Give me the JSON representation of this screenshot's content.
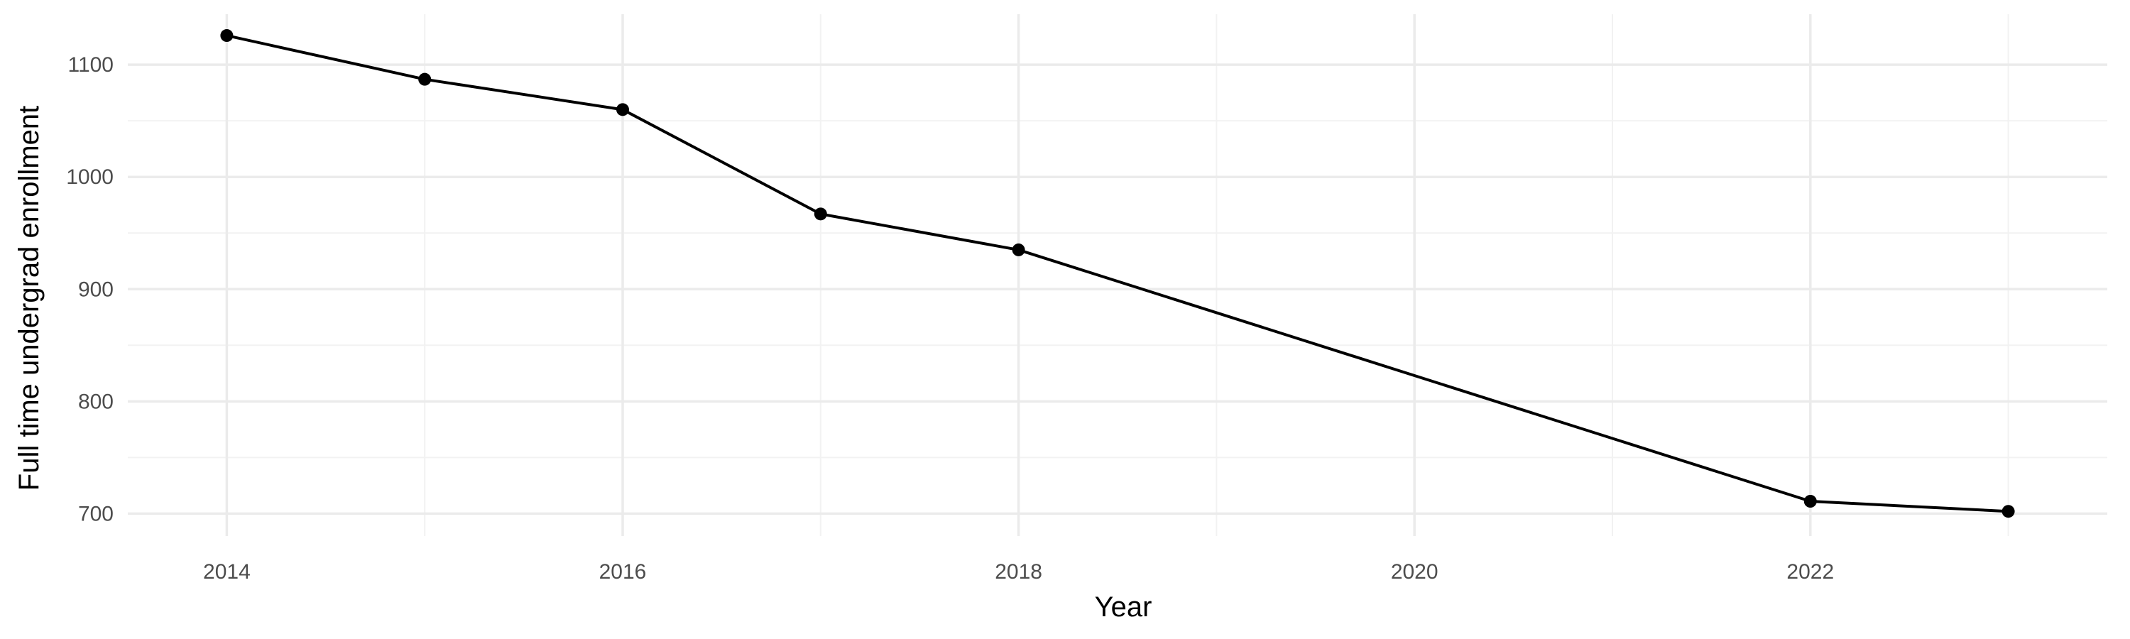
{
  "chart_data": {
    "type": "line",
    "title": "",
    "xlabel": "Year",
    "ylabel": "Full time undergrad enrollment",
    "x": [
      2014,
      2015,
      2016,
      2017,
      2018,
      2022,
      2023
    ],
    "values": [
      1126,
      1087,
      1060,
      967,
      935,
      711,
      702
    ],
    "xlim": [
      2013.5,
      2023.5
    ],
    "ylim": [
      680,
      1145
    ],
    "x_ticks": [
      2014,
      2016,
      2018,
      2020,
      2022
    ],
    "y_ticks": [
      700,
      800,
      900,
      1000,
      1100
    ],
    "grid": true,
    "line_color": "#000000",
    "point_color": "#000000",
    "grid_color": "#ebebeb"
  }
}
